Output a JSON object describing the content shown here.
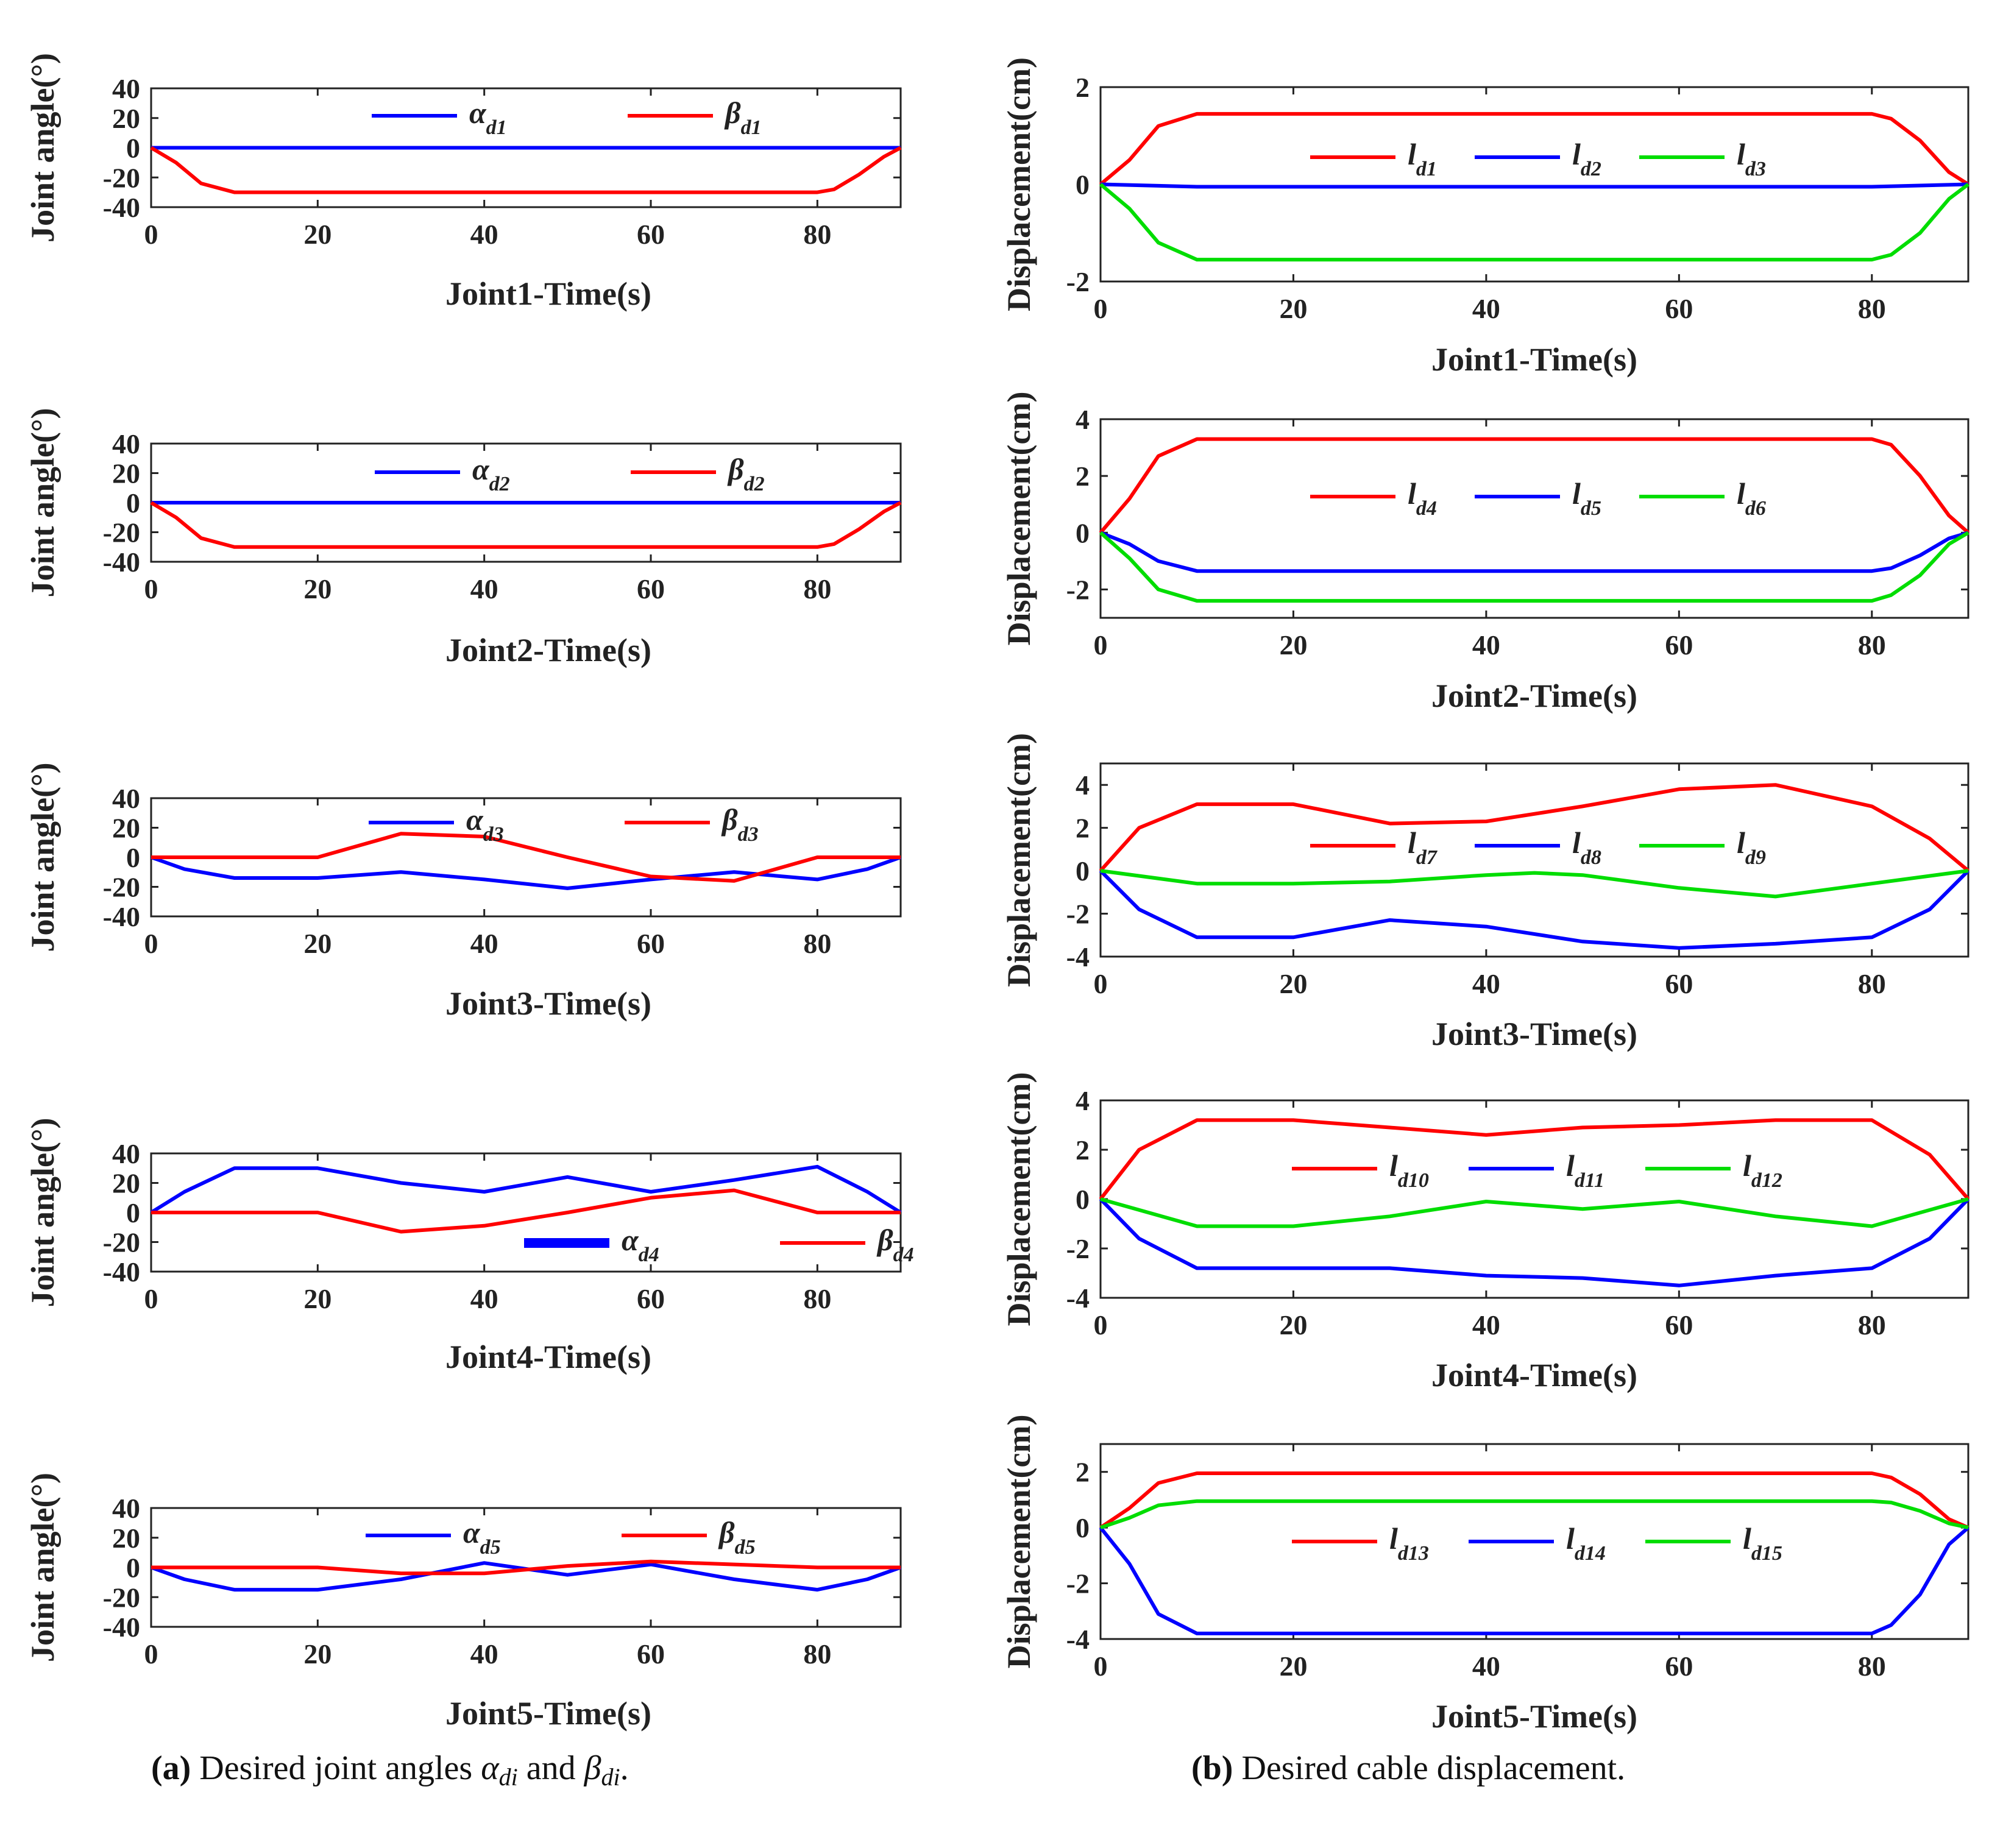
{
  "captions": {
    "a": {
      "label": "(a)",
      "text": "Desired joint angles",
      "sym1": "α",
      "sub1": "di",
      "and": "and",
      "sym2": "β",
      "sub2": "di",
      "end": "."
    },
    "b": {
      "label": "(b)",
      "text": "Desired cable displacement."
    }
  },
  "chart_data": [
    {
      "id": "a1",
      "type": "line",
      "title": "",
      "xlabel": "Joint1-Time(s)",
      "ylabel": "Joint angle(°)",
      "xlim": [
        0,
        90
      ],
      "ylim": [
        -40,
        40
      ],
      "xticks": [
        0,
        20,
        40,
        60,
        80
      ],
      "yticks": [
        40,
        20,
        0,
        -20,
        -40
      ],
      "legend_position": "top-center",
      "grid": false,
      "series": [
        {
          "name": "α",
          "sub": "d1",
          "color": "#0000ff",
          "x": [
            0,
            90
          ],
          "y": [
            0,
            0
          ]
        },
        {
          "name": "β",
          "sub": "d1",
          "color": "#ff0000",
          "x": [
            0,
            3,
            6,
            10,
            80,
            82,
            85,
            88,
            90
          ],
          "y": [
            0,
            -10,
            -24,
            -30,
            -30,
            -28,
            -18,
            -6,
            0
          ]
        }
      ]
    },
    {
      "id": "a2",
      "type": "line",
      "title": "",
      "xlabel": "Joint2-Time(s)",
      "ylabel": "Joint angle(°)",
      "xlim": [
        0,
        90
      ],
      "ylim": [
        -40,
        40
      ],
      "xticks": [
        0,
        20,
        40,
        60,
        80
      ],
      "yticks": [
        40,
        20,
        0,
        -20,
        -40
      ],
      "legend_position": "top-center",
      "grid": false,
      "series": [
        {
          "name": "α",
          "sub": "d2",
          "color": "#0000ff",
          "x": [
            0,
            90
          ],
          "y": [
            0,
            0
          ]
        },
        {
          "name": "β",
          "sub": "d2",
          "color": "#ff0000",
          "x": [
            0,
            3,
            6,
            10,
            80,
            82,
            85,
            88,
            90
          ],
          "y": [
            0,
            -10,
            -24,
            -30,
            -30,
            -28,
            -18,
            -6,
            0
          ]
        }
      ]
    },
    {
      "id": "a3",
      "type": "line",
      "title": "",
      "xlabel": "Joint3-Time(s)",
      "ylabel": "Joint angle(°)",
      "xlim": [
        0,
        90
      ],
      "ylim": [
        -40,
        40
      ],
      "xticks": [
        0,
        20,
        40,
        60,
        80
      ],
      "yticks": [
        40,
        20,
        0,
        -20,
        -40
      ],
      "legend_position": "top-center",
      "grid": false,
      "series": [
        {
          "name": "α",
          "sub": "d3",
          "color": "#0000ff",
          "x": [
            0,
            4,
            10,
            20,
            30,
            40,
            50,
            60,
            70,
            80,
            86,
            90
          ],
          "y": [
            0,
            -8,
            -14,
            -14,
            -10,
            -15,
            -21,
            -15,
            -10,
            -15,
            -8,
            0
          ]
        },
        {
          "name": "β",
          "sub": "d3",
          "color": "#ff0000",
          "x": [
            0,
            20,
            30,
            40,
            50,
            60,
            70,
            80,
            90
          ],
          "y": [
            0,
            0,
            16,
            14,
            0,
            -13,
            -16,
            0,
            0
          ]
        }
      ]
    },
    {
      "id": "a4",
      "type": "line",
      "title": "",
      "xlabel": "Joint4-Time(s)",
      "ylabel": "Joint angle(°)",
      "xlim": [
        0,
        90
      ],
      "ylim": [
        -40,
        40
      ],
      "xticks": [
        0,
        20,
        40,
        60,
        80
      ],
      "yticks": [
        40,
        20,
        0,
        -20,
        -40
      ],
      "legend_position": "bottom-right",
      "grid": false,
      "series": [
        {
          "name": "α",
          "sub": "d4",
          "color": "#0000ff",
          "x": [
            0,
            4,
            10,
            20,
            30,
            40,
            50,
            60,
            70,
            80,
            86,
            90
          ],
          "y": [
            0,
            14,
            30,
            30,
            20,
            14,
            24,
            14,
            22,
            31,
            14,
            0
          ]
        },
        {
          "name": "β",
          "sub": "d4",
          "color": "#ff0000",
          "x": [
            0,
            20,
            30,
            40,
            50,
            60,
            70,
            80,
            90
          ],
          "y": [
            0,
            0,
            -13,
            -9,
            0,
            10,
            15,
            0,
            0
          ]
        }
      ]
    },
    {
      "id": "a5",
      "type": "line",
      "title": "",
      "xlabel": "Joint5-Time(s)",
      "ylabel": "Joint angle(°)",
      "xlim": [
        0,
        90
      ],
      "ylim": [
        -40,
        40
      ],
      "xticks": [
        0,
        20,
        40,
        60,
        80
      ],
      "yticks": [
        40,
        20,
        0,
        -20,
        -40
      ],
      "legend_position": "top-center",
      "grid": false,
      "series": [
        {
          "name": "α",
          "sub": "d5",
          "color": "#0000ff",
          "x": [
            0,
            4,
            10,
            20,
            30,
            40,
            50,
            60,
            70,
            80,
            86,
            90
          ],
          "y": [
            0,
            -8,
            -15,
            -15,
            -8,
            3,
            -5,
            2,
            -8,
            -15,
            -8,
            0
          ]
        },
        {
          "name": "β",
          "sub": "d5",
          "color": "#ff0000",
          "x": [
            0,
            20,
            30,
            40,
            50,
            60,
            70,
            80,
            90
          ],
          "y": [
            0,
            0,
            -4,
            -4,
            1,
            4,
            2,
            0,
            0
          ]
        }
      ]
    },
    {
      "id": "b1",
      "type": "line",
      "title": "",
      "xlabel": "Joint1-Time(s)",
      "ylabel": "Displacement(cm)",
      "xlim": [
        0,
        90
      ],
      "ylim": [
        -2,
        2
      ],
      "xticks": [
        0,
        20,
        40,
        60,
        80
      ],
      "yticks": [
        2,
        0,
        -2
      ],
      "legend_position": "center",
      "grid": false,
      "series": [
        {
          "name": "l",
          "sub": "d1",
          "color": "#ff0000",
          "x": [
            0,
            3,
            6,
            10,
            80,
            82,
            85,
            88,
            90
          ],
          "y": [
            0,
            0.5,
            1.2,
            1.45,
            1.45,
            1.35,
            0.9,
            0.25,
            0
          ]
        },
        {
          "name": "l",
          "sub": "d2",
          "color": "#0000ff",
          "x": [
            0,
            10,
            80,
            90
          ],
          "y": [
            0,
            -0.05,
            -0.05,
            0
          ]
        },
        {
          "name": "l",
          "sub": "d3",
          "color": "#00dd00",
          "x": [
            0,
            3,
            6,
            10,
            80,
            82,
            85,
            88,
            90
          ],
          "y": [
            0,
            -0.5,
            -1.2,
            -1.55,
            -1.55,
            -1.45,
            -1.0,
            -0.3,
            0
          ]
        }
      ]
    },
    {
      "id": "b2",
      "type": "line",
      "title": "",
      "xlabel": "Joint2-Time(s)",
      "ylabel": "Displacement(cm)",
      "xlim": [
        0,
        90
      ],
      "ylim": [
        -3,
        4
      ],
      "xticks": [
        0,
        20,
        40,
        60,
        80
      ],
      "yticks": [
        4,
        2,
        0,
        -2
      ],
      "legend_position": "center",
      "grid": false,
      "series": [
        {
          "name": "l",
          "sub": "d4",
          "color": "#ff0000",
          "x": [
            0,
            3,
            6,
            10,
            80,
            82,
            85,
            88,
            90
          ],
          "y": [
            0,
            1.2,
            2.7,
            3.3,
            3.3,
            3.1,
            2.0,
            0.6,
            0
          ]
        },
        {
          "name": "l",
          "sub": "d5",
          "color": "#0000ff",
          "x": [
            0,
            3,
            6,
            10,
            80,
            82,
            85,
            88,
            90
          ],
          "y": [
            0,
            -0.4,
            -1.0,
            -1.35,
            -1.35,
            -1.25,
            -0.8,
            -0.2,
            0
          ]
        },
        {
          "name": "l",
          "sub": "d6",
          "color": "#00dd00",
          "x": [
            0,
            3,
            6,
            10,
            80,
            82,
            85,
            88,
            90
          ],
          "y": [
            0,
            -0.9,
            -2.0,
            -2.4,
            -2.4,
            -2.2,
            -1.5,
            -0.4,
            0
          ]
        }
      ]
    },
    {
      "id": "b3",
      "type": "line",
      "title": "",
      "xlabel": "Joint3-Time(s)",
      "ylabel": "Displacement(cm)",
      "xlim": [
        0,
        90
      ],
      "ylim": [
        -4,
        5
      ],
      "xticks": [
        0,
        20,
        40,
        60,
        80
      ],
      "yticks": [
        4,
        2,
        0,
        -2,
        -4
      ],
      "legend_position": "center",
      "grid": false,
      "series": [
        {
          "name": "l",
          "sub": "d7",
          "color": "#ff0000",
          "x": [
            0,
            4,
            10,
            20,
            30,
            40,
            50,
            60,
            70,
            80,
            86,
            90
          ],
          "y": [
            0,
            2.0,
            3.1,
            3.1,
            2.2,
            2.3,
            3.0,
            3.8,
            4.0,
            3.0,
            1.5,
            0
          ]
        },
        {
          "name": "l",
          "sub": "d8",
          "color": "#0000ff",
          "x": [
            0,
            4,
            10,
            20,
            30,
            40,
            50,
            60,
            70,
            80,
            86,
            90
          ],
          "y": [
            0,
            -1.8,
            -3.1,
            -3.1,
            -2.3,
            -2.6,
            -3.3,
            -3.6,
            -3.4,
            -3.1,
            -1.8,
            0
          ]
        },
        {
          "name": "l",
          "sub": "d9",
          "color": "#00dd00",
          "x": [
            0,
            10,
            20,
            30,
            40,
            45,
            50,
            60,
            70,
            80,
            90
          ],
          "y": [
            0,
            -0.6,
            -0.6,
            -0.5,
            -0.2,
            -0.1,
            -0.2,
            -0.8,
            -1.2,
            -0.6,
            0
          ]
        }
      ]
    },
    {
      "id": "b4",
      "type": "line",
      "title": "",
      "xlabel": "Joint4-Time(s)",
      "ylabel": "Displacement(cm)",
      "xlim": [
        0,
        90
      ],
      "ylim": [
        -4,
        4
      ],
      "xticks": [
        0,
        20,
        40,
        60,
        80
      ],
      "yticks": [
        4,
        2,
        0,
        -2,
        -4
      ],
      "legend_position": "center",
      "grid": false,
      "series": [
        {
          "name": "l",
          "sub": "d10",
          "color": "#ff0000",
          "x": [
            0,
            4,
            10,
            20,
            30,
            40,
            50,
            60,
            70,
            80,
            86,
            90
          ],
          "y": [
            0,
            2.0,
            3.2,
            3.2,
            2.9,
            2.6,
            2.9,
            3.0,
            3.2,
            3.2,
            1.8,
            0
          ]
        },
        {
          "name": "l",
          "sub": "d11",
          "color": "#0000ff",
          "x": [
            0,
            4,
            10,
            20,
            30,
            40,
            50,
            60,
            70,
            80,
            86,
            90
          ],
          "y": [
            0,
            -1.6,
            -2.8,
            -2.8,
            -2.8,
            -3.1,
            -3.2,
            -3.5,
            -3.1,
            -2.8,
            -1.6,
            0
          ]
        },
        {
          "name": "l",
          "sub": "d12",
          "color": "#00dd00",
          "x": [
            0,
            10,
            20,
            30,
            40,
            50,
            60,
            70,
            80,
            90
          ],
          "y": [
            0,
            -1.1,
            -1.1,
            -0.7,
            -0.1,
            -0.4,
            -0.1,
            -0.7,
            -1.1,
            0
          ]
        }
      ]
    },
    {
      "id": "b5",
      "type": "line",
      "title": "",
      "xlabel": "Joint5-Time(s)",
      "ylabel": "Displacement(cm)",
      "xlim": [
        0,
        90
      ],
      "ylim": [
        -4,
        3
      ],
      "xticks": [
        0,
        20,
        40,
        60,
        80
      ],
      "yticks": [
        2,
        0,
        -2,
        -4
      ],
      "legend_position": "center",
      "grid": false,
      "series": [
        {
          "name": "l",
          "sub": "d13",
          "color": "#ff0000",
          "x": [
            0,
            3,
            6,
            10,
            80,
            82,
            85,
            88,
            90
          ],
          "y": [
            0,
            0.7,
            1.6,
            1.95,
            1.95,
            1.8,
            1.2,
            0.3,
            0
          ]
        },
        {
          "name": "l",
          "sub": "d14",
          "color": "#0000ff",
          "x": [
            0,
            3,
            6,
            10,
            80,
            82,
            85,
            88,
            90
          ],
          "y": [
            0,
            -1.3,
            -3.1,
            -3.8,
            -3.8,
            -3.5,
            -2.4,
            -0.6,
            0
          ]
        },
        {
          "name": "l",
          "sub": "d15",
          "color": "#00dd00",
          "x": [
            0,
            3,
            6,
            10,
            80,
            82,
            85,
            88,
            90
          ],
          "y": [
            0,
            0.35,
            0.8,
            0.95,
            0.95,
            0.9,
            0.6,
            0.15,
            0
          ]
        }
      ]
    }
  ]
}
